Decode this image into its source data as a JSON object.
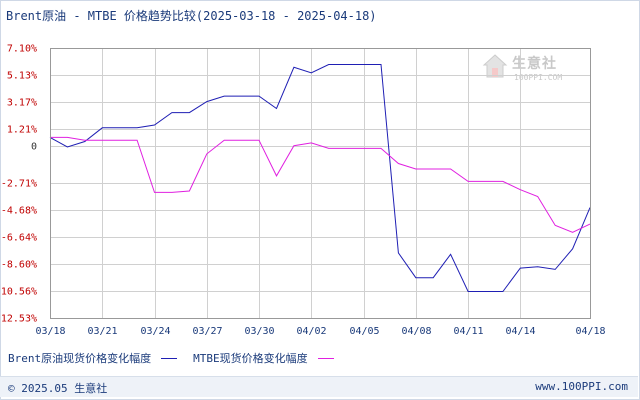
{
  "title": "Brent原油 - MTBE 价格趋势比较(2025-03-18 - 2025-04-18)",
  "watermark": {
    "name": "生意社",
    "url": "100PPI.COM",
    "icon": "house-logo-icon"
  },
  "footer": {
    "left": "© 2025.05 生意社",
    "right": "www.100PPI.com"
  },
  "colors": {
    "brent": "#1f1fb4",
    "mtbe": "#e020e0",
    "grid": "#d0d0d0",
    "ytick": "#c00000"
  },
  "chart_data": {
    "type": "line",
    "title": "Brent原油 - MTBE 价格趋势比较(2025-03-18 - 2025-04-18)",
    "xlabel": "",
    "ylabel": "",
    "grid": true,
    "legend_position": "bottom-left",
    "ylim": [
      -12.53,
      7.1
    ],
    "y_ticks": [
      "7.10%",
      "5.13%",
      "3.17%",
      "1.21%",
      "0",
      "-2.71%",
      "-4.68%",
      "-6.64%",
      "-8.60%",
      "-10.56%",
      "-12.53%"
    ],
    "y_tick_values": [
      7.1,
      5.13,
      3.17,
      1.21,
      0,
      -2.71,
      -4.68,
      -6.64,
      -8.6,
      -10.56,
      -12.53
    ],
    "x_ticks": [
      "03/18",
      "03/21",
      "03/24",
      "03/27",
      "03/30",
      "04/02",
      "04/05",
      "04/08",
      "04/11",
      "04/14",
      "04/18"
    ],
    "x_tick_days": [
      0,
      3,
      6,
      9,
      12,
      15,
      18,
      21,
      24,
      27,
      31
    ],
    "series": [
      {
        "name": "Brent原油现货价格变化幅度",
        "color": "#1f1fb4",
        "points": [
          [
            0,
            0.6
          ],
          [
            1,
            -0.1
          ],
          [
            2,
            0.3
          ],
          [
            3,
            1.3
          ],
          [
            4,
            1.3
          ],
          [
            5,
            1.3
          ],
          [
            6,
            1.5
          ],
          [
            7,
            2.4
          ],
          [
            8,
            2.4
          ],
          [
            9,
            3.2
          ],
          [
            10,
            3.6
          ],
          [
            11,
            3.6
          ],
          [
            12,
            3.6
          ],
          [
            13,
            2.7
          ],
          [
            14,
            5.7
          ],
          [
            15,
            5.3
          ],
          [
            16,
            5.9
          ],
          [
            17,
            5.9
          ],
          [
            18,
            5.9
          ],
          [
            19,
            5.9
          ],
          [
            20,
            -7.8
          ],
          [
            21,
            -9.6
          ],
          [
            22,
            -9.6
          ],
          [
            23,
            -7.9
          ],
          [
            24,
            -10.6
          ],
          [
            25,
            -10.6
          ],
          [
            26,
            -10.6
          ],
          [
            27,
            -8.9
          ],
          [
            28,
            -8.8
          ],
          [
            29,
            -9.0
          ],
          [
            30,
            -7.5
          ],
          [
            31,
            -4.5
          ]
        ]
      },
      {
        "name": "MTBE现货价格变化幅度",
        "color": "#e020e0",
        "points": [
          [
            0,
            0.6
          ],
          [
            1,
            0.6
          ],
          [
            2,
            0.4
          ],
          [
            3,
            0.4
          ],
          [
            4,
            0.4
          ],
          [
            5,
            0.4
          ],
          [
            6,
            -3.4
          ],
          [
            7,
            -3.4
          ],
          [
            8,
            -3.3
          ],
          [
            9,
            -0.6
          ],
          [
            10,
            0.4
          ],
          [
            11,
            0.4
          ],
          [
            12,
            0.4
          ],
          [
            13,
            -2.2
          ],
          [
            14,
            0.0
          ],
          [
            15,
            0.2
          ],
          [
            16,
            -0.2
          ],
          [
            17,
            -0.2
          ],
          [
            18,
            -0.2
          ],
          [
            19,
            -0.2
          ],
          [
            20,
            -1.3
          ],
          [
            21,
            -1.7
          ],
          [
            22,
            -1.7
          ],
          [
            23,
            -1.7
          ],
          [
            24,
            -2.6
          ],
          [
            25,
            -2.6
          ],
          [
            26,
            -2.6
          ],
          [
            27,
            -3.2
          ],
          [
            28,
            -3.7
          ],
          [
            29,
            -5.8
          ],
          [
            30,
            -6.3
          ],
          [
            31,
            -5.7
          ]
        ]
      }
    ]
  }
}
